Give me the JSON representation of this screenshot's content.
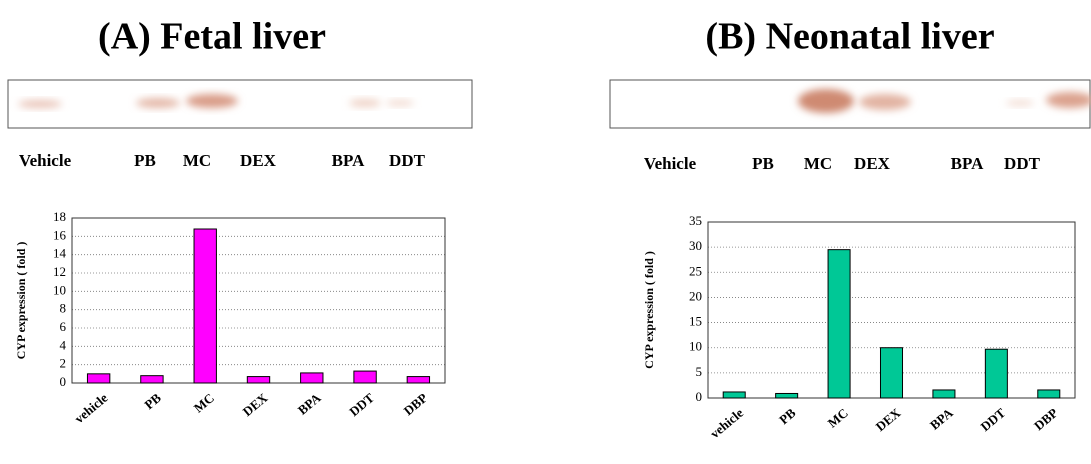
{
  "chart_data": [
    {
      "type": "bar",
      "title": "(A) Fetal liver",
      "blot_labels": [
        "Vehicle",
        "PB",
        "MC",
        "DEX",
        "BPA",
        "DDT"
      ],
      "y_label": "CYP expression ( fold )",
      "categories": [
        "vehicle",
        "PB",
        "MC",
        "DEX",
        "BPA",
        "DDT",
        "DBP"
      ],
      "values": [
        1.0,
        0.8,
        16.8,
        0.7,
        1.1,
        1.3,
        0.7
      ],
      "color": "#ff00ff",
      "ylim": [
        0,
        18
      ],
      "yticks": [
        0,
        2,
        4,
        6,
        8,
        10,
        12,
        14,
        16,
        18
      ],
      "grid": true
    },
    {
      "type": "bar",
      "title": "(B) Neonatal liver",
      "blot_labels": [
        "Vehicle",
        "PB",
        "MC",
        "DEX",
        "BPA",
        "DDT"
      ],
      "y_label": "CYP expression ( fold )",
      "categories": [
        "vehicle",
        "PB",
        "MC",
        "DEX",
        "BPA",
        "DDT",
        "DBP"
      ],
      "values": [
        1.2,
        0.9,
        29.5,
        10.0,
        1.6,
        9.7,
        1.6
      ],
      "color": "#00c896",
      "ylim": [
        0,
        35
      ],
      "yticks": [
        0,
        5,
        10,
        15,
        20,
        25,
        30,
        35
      ],
      "grid": true
    }
  ]
}
